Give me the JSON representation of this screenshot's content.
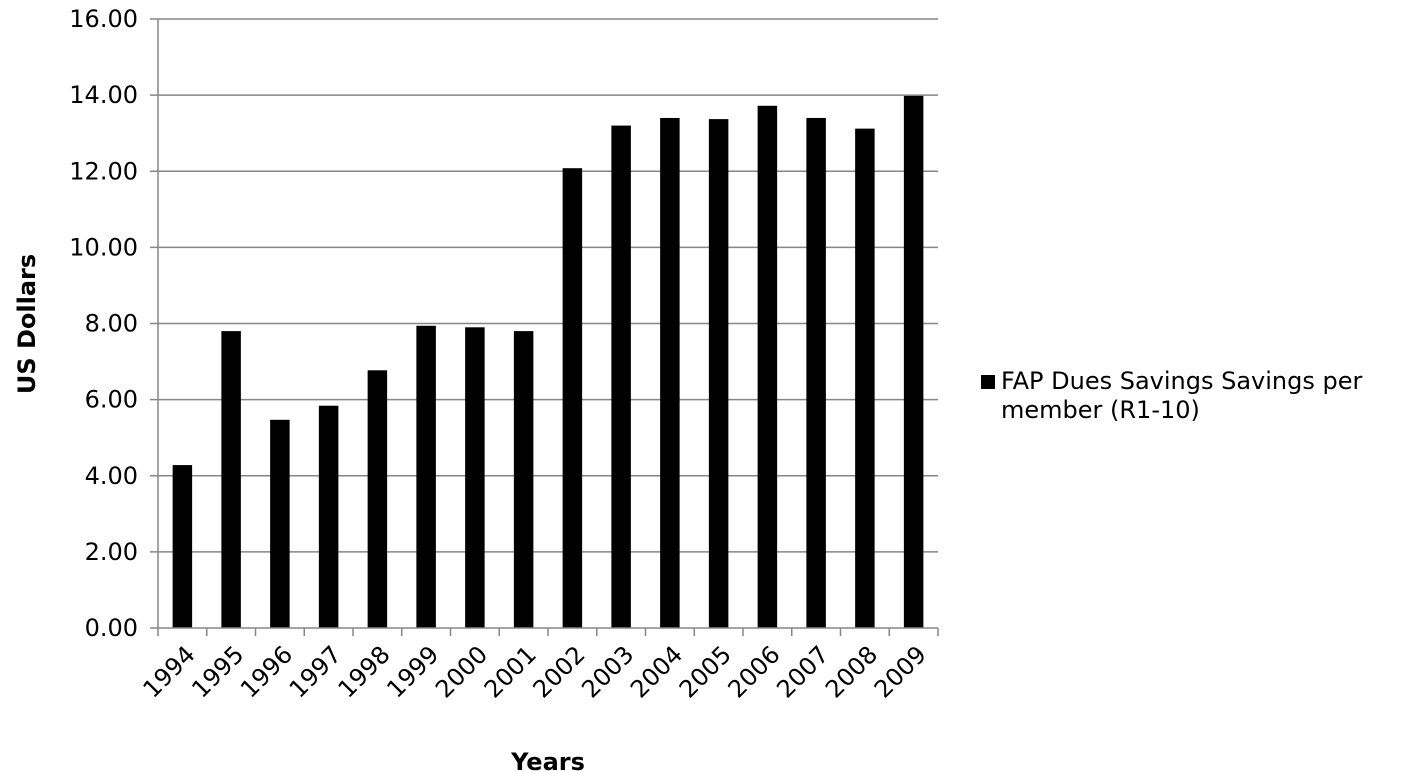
{
  "chart_data": {
    "type": "bar",
    "categories": [
      "1994",
      "1995",
      "1996",
      "1997",
      "1998",
      "1999",
      "2000",
      "2001",
      "2002",
      "2003",
      "2004",
      "2005",
      "2006",
      "2007",
      "2008",
      "2009"
    ],
    "series": [
      {
        "name": "FAP Dues Savings  Savings per member (R1-10)",
        "values": [
          4.28,
          7.8,
          5.47,
          5.84,
          6.77,
          7.94,
          7.9,
          7.8,
          12.08,
          13.2,
          13.4,
          13.37,
          13.72,
          13.4,
          13.12,
          13.98
        ]
      }
    ],
    "legend_lines": [
      "FAP Dues Savings  Savings per",
      "member (R1-10)"
    ],
    "xlabel": "Years",
    "ylabel": "US Dollars",
    "ylim": [
      0,
      16
    ],
    "yticks": [
      "0.00",
      "2.00",
      "4.00",
      "6.00",
      "8.00",
      "10.00",
      "12.00",
      "14.00",
      "16.00"
    ],
    "grid": true,
    "legend_position": "right",
    "bar_color": "#000000",
    "grid_color": "#868686"
  }
}
